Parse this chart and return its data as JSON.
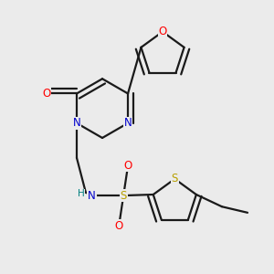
{
  "background_color": "#ebebeb",
  "atom_colors": {
    "O": "#ff0000",
    "N": "#0000cc",
    "S_thio": "#b8a000",
    "S_sulfo": "#b8a000",
    "C": "#1a1a1a",
    "H": "#008080"
  },
  "bond_color": "#1a1a1a",
  "bond_width": 1.6
}
